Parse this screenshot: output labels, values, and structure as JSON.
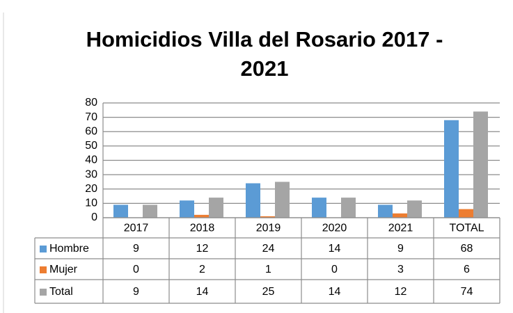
{
  "chart_data": {
    "type": "bar",
    "title": "Homicidios Villa del Rosario 2017 - 2021",
    "categories": [
      "2017",
      "2018",
      "2019",
      "2020",
      "2021",
      "TOTAL"
    ],
    "series": [
      {
        "name": "Hombre",
        "color": "#5b9bd5",
        "values": [
          9,
          12,
          24,
          14,
          9,
          68
        ]
      },
      {
        "name": "Mujer",
        "color": "#ed7d31",
        "values": [
          0,
          2,
          1,
          0,
          3,
          6
        ]
      },
      {
        "name": "Total",
        "color": "#a5a5a5",
        "values": [
          9,
          14,
          25,
          14,
          12,
          74
        ]
      }
    ],
    "ylim": [
      0,
      80
    ],
    "yticks": [
      0,
      10,
      20,
      30,
      40,
      50,
      60,
      70,
      80
    ],
    "grid": true
  }
}
